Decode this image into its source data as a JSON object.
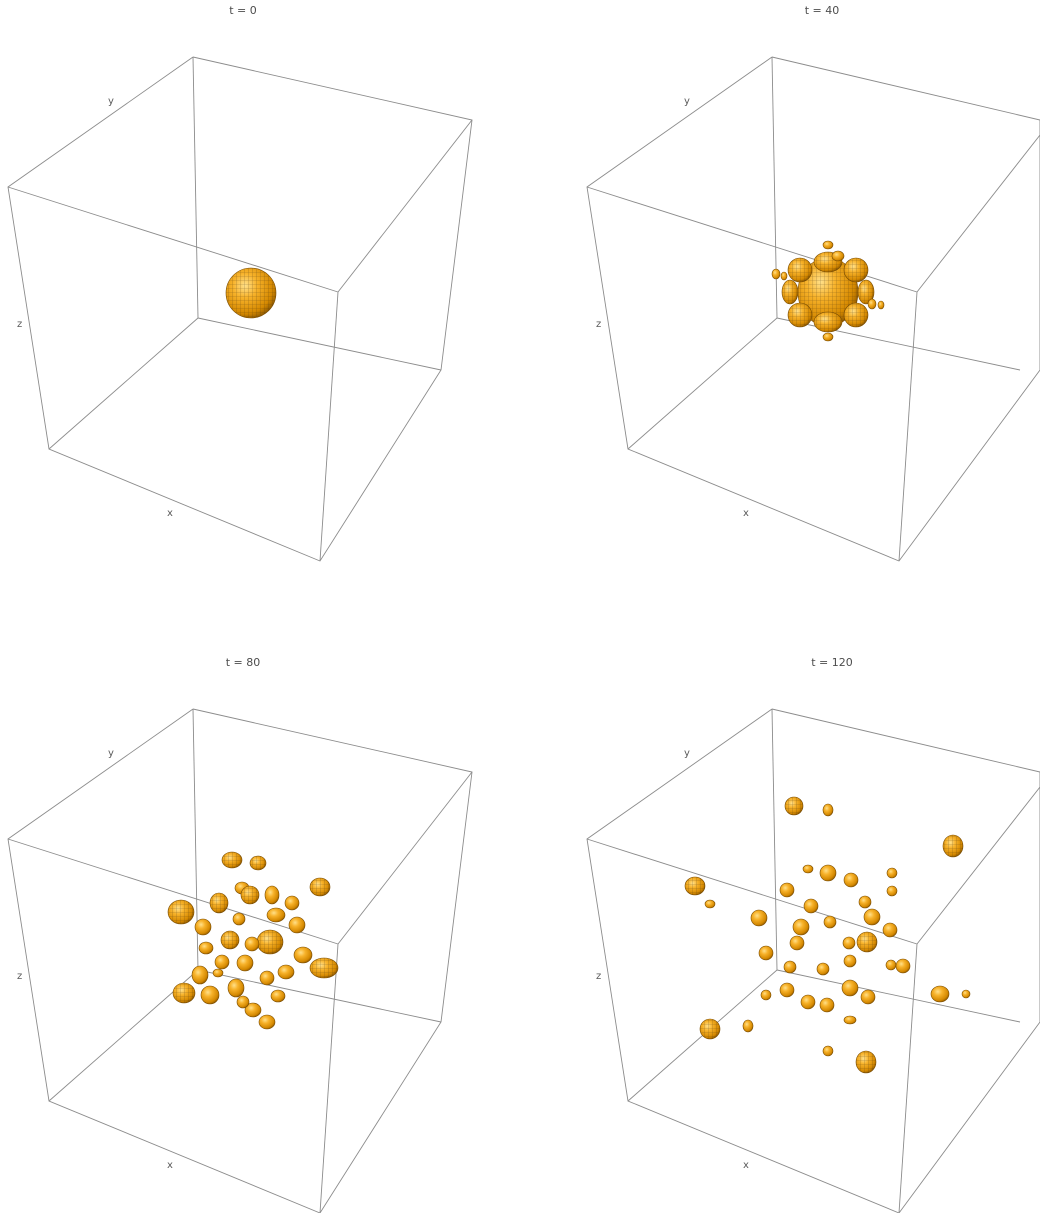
{
  "panels": [
    {
      "title": "t = 0",
      "axes": {
        "x": "x",
        "y": "y",
        "z": "z"
      }
    },
    {
      "title": "t = 40",
      "axes": {
        "x": "x",
        "y": "y",
        "z": "z"
      }
    },
    {
      "title": "t = 80",
      "axes": {
        "x": "x",
        "y": "y",
        "z": "z"
      }
    },
    {
      "title": "t = 120",
      "axes": {
        "x": "x",
        "y": "y",
        "z": "z"
      }
    }
  ],
  "colors": {
    "surface": "#f5a623",
    "surface_highlight": "#ffd27a",
    "surface_shadow": "#a86800",
    "mesh": "#3a2a10",
    "box_edge": "#8c8c8c"
  }
}
